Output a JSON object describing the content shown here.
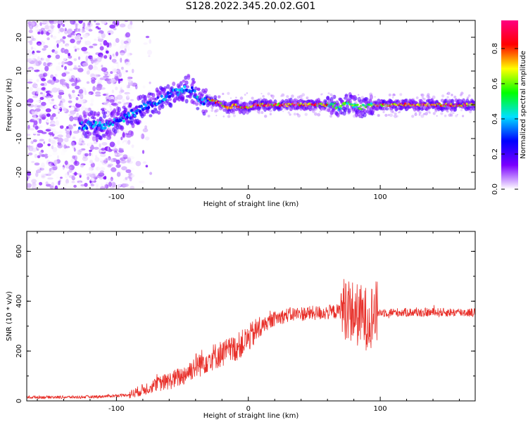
{
  "figure_title": "S128.2022.345.20.02.G01",
  "chart_data": [
    {
      "type": "heatmap",
      "title": "",
      "xlabel": "Height of straight line (km)",
      "ylabel": "Frequency (Hz)",
      "xlim": [
        -168,
        172
      ],
      "ylim": [
        -25,
        25
      ],
      "xticks": [
        -100,
        0,
        100
      ],
      "yticks": [
        -20,
        -10,
        0,
        10,
        20
      ],
      "grid": false,
      "colorbar": {
        "label": "Normalized spectral amplitude",
        "range": [
          0.0,
          0.96
        ],
        "ticks": [
          0.0,
          0.2,
          0.4,
          0.6,
          0.8
        ],
        "colors": [
          "#ffffff",
          "#7a00ff",
          "#0000ff",
          "#00e0ff",
          "#00ff00",
          "#ffff00",
          "#ff0000",
          "#ff0080"
        ]
      },
      "ridge": {
        "x": [
          -128,
          -110,
          -100,
          -90,
          -80,
          -70,
          -60,
          -50,
          -45,
          -40,
          -35,
          -30,
          -25,
          -20,
          -15,
          -10,
          -5,
          0,
          5,
          10,
          30,
          50,
          65,
          70,
          75,
          80,
          85,
          90,
          95,
          100,
          130,
          172
        ],
        "y": [
          -6,
          -6,
          -5,
          -3,
          -1,
          1,
          3,
          4,
          5,
          3,
          1,
          1.5,
          1,
          0,
          -1,
          0,
          -1,
          -1,
          0,
          0,
          0,
          0,
          0,
          -1,
          1,
          0,
          -1,
          0,
          0,
          0,
          0,
          0
        ]
      }
    },
    {
      "type": "line",
      "title": "",
      "xlabel": "Height of straight line (km)",
      "ylabel": "SNR (10 * v/v)",
      "xlim": [
        -168,
        172
      ],
      "ylim": [
        0,
        680
      ],
      "xticks": [
        -100,
        0,
        100
      ],
      "yticks": [
        0,
        200,
        400,
        600
      ],
      "grid": false,
      "series": [
        {
          "color": "#e8302a",
          "x": [
            -168,
            -150,
            -130,
            -110,
            -90,
            -80,
            -70,
            -60,
            -50,
            -40,
            -30,
            -20,
            -10,
            0,
            10,
            20,
            30,
            40,
            50,
            60,
            70,
            75,
            80,
            85,
            90,
            95,
            100,
            110,
            120,
            130,
            140,
            150,
            160,
            172
          ],
          "y": [
            15,
            15,
            15,
            18,
            25,
            45,
            65,
            80,
            100,
            140,
            170,
            190,
            210,
            250,
            300,
            330,
            345,
            350,
            352,
            355,
            360,
            380,
            350,
            340,
            330,
            350,
            355,
            355,
            355,
            355,
            355,
            355,
            355,
            355
          ]
        }
      ]
    }
  ]
}
